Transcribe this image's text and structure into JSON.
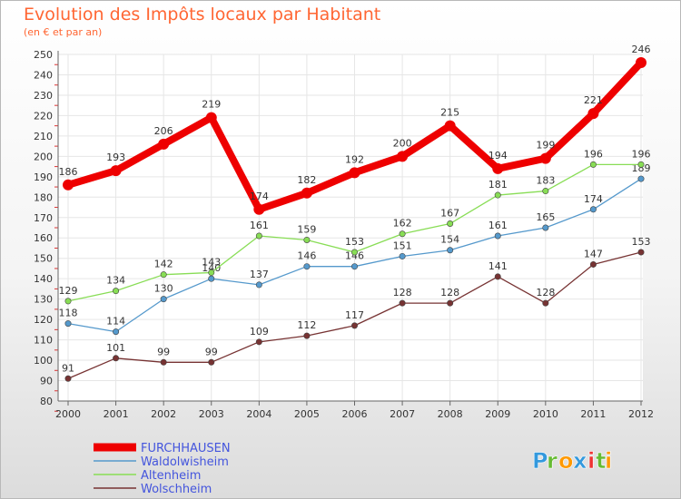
{
  "chart_data": {
    "type": "line",
    "title": "Evolution des Impôts locaux par Habitant",
    "subtitle": "(en € et par an)",
    "x": [
      "2000",
      "2001",
      "2002",
      "2003",
      "2004",
      "2005",
      "2006",
      "2007",
      "2008",
      "2009",
      "2010",
      "2011",
      "2012"
    ],
    "ylim": [
      80,
      250
    ],
    "yticks": [
      80,
      90,
      100,
      110,
      120,
      130,
      140,
      150,
      160,
      170,
      180,
      190,
      200,
      210,
      220,
      230,
      240,
      250
    ],
    "grid": true,
    "legend_position": "bottom-left",
    "series": [
      {
        "name": "FURCHHAUSEN",
        "color": "#ee0000",
        "bold": true,
        "values": [
          186,
          193,
          206,
          219,
          174,
          182,
          192,
          200,
          215,
          194,
          199,
          221,
          246
        ]
      },
      {
        "name": "Waldolwisheim",
        "color": "#5599cc",
        "bold": false,
        "values": [
          118,
          114,
          130,
          140,
          137,
          146,
          146,
          151,
          154,
          161,
          165,
          174,
          189
        ]
      },
      {
        "name": "Altenheim",
        "color": "#88dd55",
        "bold": false,
        "values": [
          129,
          134,
          142,
          143,
          161,
          159,
          153,
          162,
          167,
          181,
          183,
          196,
          196
        ]
      },
      {
        "name": "Wolschheim",
        "color": "#773333",
        "bold": false,
        "values": [
          91,
          101,
          99,
          99,
          109,
          112,
          117,
          128,
          128,
          141,
          128,
          147,
          153
        ]
      }
    ]
  },
  "brand": {
    "letters": [
      "P",
      "r",
      "o",
      "x",
      "i",
      "t",
      "i"
    ],
    "colors": [
      "#3399dd",
      "#66bb33",
      "#ff9900",
      "#3399dd",
      "#ee3333",
      "#66bb33",
      "#ff9900"
    ]
  }
}
